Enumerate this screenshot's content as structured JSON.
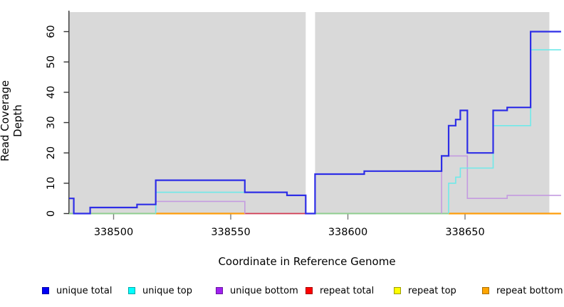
{
  "chart_data": {
    "type": "line",
    "subtype": "step",
    "title": "",
    "xlabel": "Coordinate in Reference Genome",
    "ylabel": "Read Coverage Depth",
    "x_ticks": [
      338500,
      338550,
      338600,
      338650
    ],
    "y_ticks": [
      0,
      10,
      20,
      30,
      40,
      50,
      60
    ],
    "xlim": [
      338481,
      338691
    ],
    "ylim": [
      0,
      66
    ],
    "grid": false,
    "legend_position": "bottom",
    "plot_bg": "#d9d9d9",
    "axis_color": "#333333",
    "x_tick_color": "#7a7a7a",
    "region_rects": [
      [
        338481,
        338582
      ],
      [
        338586,
        338686
      ]
    ],
    "gap_region": [
      338582,
      338586
    ],
    "zero_segments": [
      {
        "name": "zero-unique-top-over-repeat-top",
        "color": "#8fce8f",
        "width": 2,
        "from": 338481,
        "to": 338518
      },
      {
        "name": "zero-unique-top-over-repeat-top",
        "color": "#8fce8f",
        "width": 2,
        "from": 338586,
        "to": 338643
      },
      {
        "name": "zero-repeat-total",
        "color": "#d23b52",
        "width": 1.8,
        "from": 338556,
        "to": 338582
      },
      {
        "name": "zero-repeat-bottom",
        "color": "#ff9d0a",
        "width": 2.2,
        "from": 338518,
        "to": 338556
      },
      {
        "name": "zero-repeat-bottom",
        "color": "#ff9d0a",
        "width": 2.2,
        "from": 338643,
        "to": 338691
      }
    ],
    "series": [
      {
        "name": "unique bottom",
        "color": "#c49be0",
        "width": 1.6,
        "parts": [
          [
            [
              338518,
              0
            ],
            [
              338518,
              4
            ],
            [
              338556,
              4
            ],
            [
              338556,
              0
            ]
          ],
          [
            [
              338640,
              0
            ],
            [
              338640,
              19
            ],
            [
              338651,
              19
            ],
            [
              338651,
              5
            ],
            [
              338668,
              5
            ],
            [
              338668,
              6
            ],
            [
              338691,
              6
            ]
          ]
        ]
      },
      {
        "name": "unique top",
        "color": "#6fe9e9",
        "width": 1.6,
        "parts": [
          [
            [
              338518,
              0
            ],
            [
              338518,
              7
            ],
            [
              338574,
              7
            ],
            [
              338574,
              6
            ],
            [
              338582,
              6
            ],
            [
              338582,
              0
            ]
          ],
          [
            [
              338643,
              0
            ],
            [
              338643,
              10
            ],
            [
              338646,
              10
            ],
            [
              338646,
              12
            ],
            [
              338648,
              12
            ],
            [
              338648,
              15
            ],
            [
              338662,
              15
            ],
            [
              338662,
              29
            ],
            [
              338678,
              29
            ],
            [
              338678,
              54
            ],
            [
              338691,
              54
            ]
          ]
        ]
      },
      {
        "name": "unique total",
        "color": "#2e2ee6",
        "width": 2.2,
        "parts": [
          [
            [
              338481,
              5
            ],
            [
              338483,
              5
            ],
            [
              338483,
              0
            ],
            [
              338490,
              0
            ],
            [
              338490,
              2
            ],
            [
              338510,
              2
            ],
            [
              338510,
              3
            ],
            [
              338518,
              3
            ],
            [
              338518,
              11
            ],
            [
              338556,
              11
            ],
            [
              338556,
              7
            ],
            [
              338574,
              7
            ],
            [
              338574,
              6
            ],
            [
              338582,
              6
            ],
            [
              338582,
              0
            ],
            [
              338586,
              0
            ],
            [
              338586,
              13
            ],
            [
              338607,
              13
            ],
            [
              338607,
              14
            ],
            [
              338640,
              14
            ],
            [
              338640,
              19
            ],
            [
              338643,
              19
            ],
            [
              338643,
              29
            ],
            [
              338646,
              29
            ],
            [
              338646,
              31
            ],
            [
              338648,
              31
            ],
            [
              338648,
              34
            ],
            [
              338651,
              34
            ],
            [
              338651,
              20
            ],
            [
              338662,
              20
            ],
            [
              338662,
              34
            ],
            [
              338668,
              34
            ],
            [
              338668,
              35
            ],
            [
              338678,
              35
            ],
            [
              338678,
              60
            ],
            [
              338691,
              60
            ]
          ]
        ]
      },
      {
        "name": "repeat total",
        "color": "#d23b52",
        "width": 1.8,
        "values_note": "0 across plotted range",
        "parts": []
      },
      {
        "name": "repeat top",
        "color": "#ffff00",
        "width": 1.8,
        "values_note": "0 across plotted range",
        "parts": []
      },
      {
        "name": "repeat bottom",
        "color": "#ff9d0a",
        "width": 2.2,
        "values_note": "0 across plotted range",
        "parts": []
      }
    ]
  },
  "axes": {
    "x_title": "Coordinate in Reference Genome",
    "y_title": "Read Coverage Depth"
  },
  "legend": {
    "items": [
      {
        "label": "unique total",
        "fill": "#0000f5",
        "border": "#0000a8"
      },
      {
        "label": "unique top",
        "fill": "#00ffff",
        "border": "#00a8a8"
      },
      {
        "label": "unique bottom",
        "fill": "#a021f0",
        "border": "#6a14a0"
      },
      {
        "label": "repeat total",
        "fill": "#ff0000",
        "border": "#a80000"
      },
      {
        "label": "repeat top",
        "fill": "#ffff00",
        "border": "#9c9c00"
      },
      {
        "label": "repeat bottom",
        "fill": "#ffa500",
        "border": "#aa6e00"
      }
    ]
  }
}
